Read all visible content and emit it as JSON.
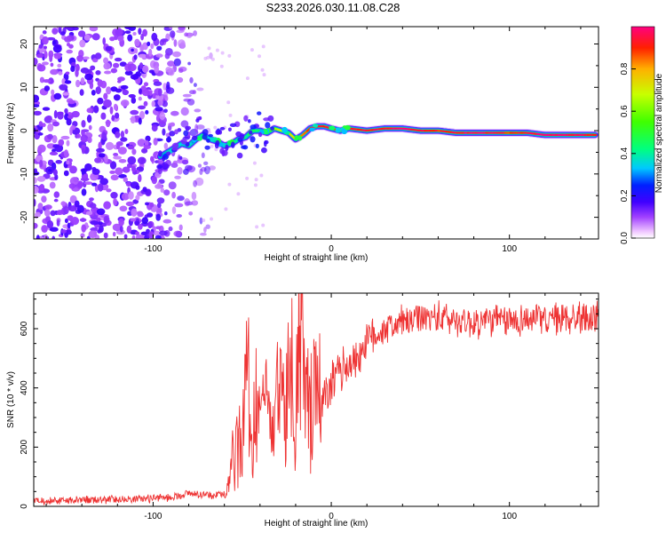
{
  "title": "S233.2026.030.11.08.C28",
  "spectrogram": {
    "xlabel": "Height of straight line (km)",
    "ylabel": "Frequency (Hz)",
    "xlim": [
      -167,
      150
    ],
    "ylim": [
      -25,
      24
    ],
    "xticks": [
      -100,
      0,
      100
    ],
    "yticks": [
      -20,
      -10,
      0,
      10,
      20
    ],
    "colorbar": {
      "label": "Normalized spectral amplitude",
      "ticks": [
        0.0,
        0.2,
        0.4,
        0.6,
        0.8
      ],
      "colormap": [
        "#ffffff",
        "#f0c8ff",
        "#a040ff",
        "#4000ff",
        "#0020ff",
        "#00c8ff",
        "#00ff80",
        "#40ff00",
        "#c8ff00",
        "#ffb000",
        "#ff2000",
        "#ff0080"
      ]
    },
    "ridge": {
      "height_km": [
        -96,
        -92,
        -88,
        -84,
        -80,
        -76,
        -72,
        -68,
        -64,
        -60,
        -56,
        -52,
        -48,
        -44,
        -40,
        -36,
        -32,
        -28,
        -24,
        -20,
        -16,
        -12,
        -8,
        -4,
        0,
        5,
        10,
        20,
        30,
        40,
        50,
        60,
        70,
        80,
        90,
        100,
        110,
        120,
        130,
        140,
        148
      ],
      "frequency_hz": [
        -6,
        -5,
        -4,
        -3,
        -3.5,
        -2,
        -1,
        -2,
        -2.5,
        -3.5,
        -3,
        -2,
        -1.5,
        0,
        0,
        -0.5,
        0.5,
        0,
        -0.5,
        -2,
        -1,
        0.5,
        1,
        1,
        0.5,
        0,
        0.5,
        0,
        0.5,
        0.5,
        0,
        0,
        -0.5,
        -0.5,
        -0.5,
        -0.5,
        -0.5,
        -1,
        -1,
        -1,
        -1
      ],
      "amplitude": [
        0.25,
        0.28,
        0.3,
        0.3,
        0.32,
        0.33,
        0.35,
        0.3,
        0.35,
        0.38,
        0.4,
        0.4,
        0.42,
        0.45,
        0.5,
        0.55,
        0.6,
        0.7,
        0.75,
        0.8,
        0.85,
        0.9,
        0.95,
        0.95,
        0.9,
        0.85,
        0.9,
        0.95,
        0.95,
        1.0,
        0.95,
        0.9,
        0.95,
        1.0,
        0.95,
        0.9,
        0.95,
        1.0,
        1.0,
        0.95,
        0.9
      ]
    }
  },
  "chart_data": {
    "type": "line",
    "title": "S233.2026.030.11.08.C28",
    "xlabel": "Height of straight line (km)",
    "ylabel": "SNR (10 * v/v)",
    "xlim": [
      -167,
      150
    ],
    "ylim": [
      0,
      720
    ],
    "xticks": [
      -100,
      0,
      100
    ],
    "yticks": [
      0,
      200,
      400,
      600
    ],
    "series": [
      {
        "name": "SNR",
        "color": "#ee3333",
        "x": [
          -167,
          -150,
          -130,
          -110,
          -90,
          -80,
          -70,
          -65,
          -60,
          -57,
          -55,
          -52,
          -50,
          -48,
          -45,
          -42,
          -40,
          -38,
          -35,
          -32,
          -30,
          -27,
          -25,
          -22,
          -20,
          -17,
          -15,
          -12,
          -10,
          -7,
          -5,
          -2,
          0,
          5,
          10,
          15,
          20,
          25,
          30,
          40,
          50,
          60,
          70,
          80,
          90,
          100,
          110,
          120,
          130,
          140,
          150
        ],
        "values": [
          20,
          20,
          22,
          25,
          30,
          45,
          40,
          35,
          50,
          100,
          180,
          250,
          200,
          530,
          220,
          330,
          260,
          350,
          300,
          260,
          390,
          300,
          340,
          480,
          310,
          650,
          350,
          360,
          380,
          350,
          340,
          380,
          410,
          460,
          480,
          510,
          560,
          580,
          600,
          620,
          630,
          640,
          630,
          620,
          630,
          625,
          635,
          630,
          635,
          640,
          635
        ]
      }
    ]
  }
}
